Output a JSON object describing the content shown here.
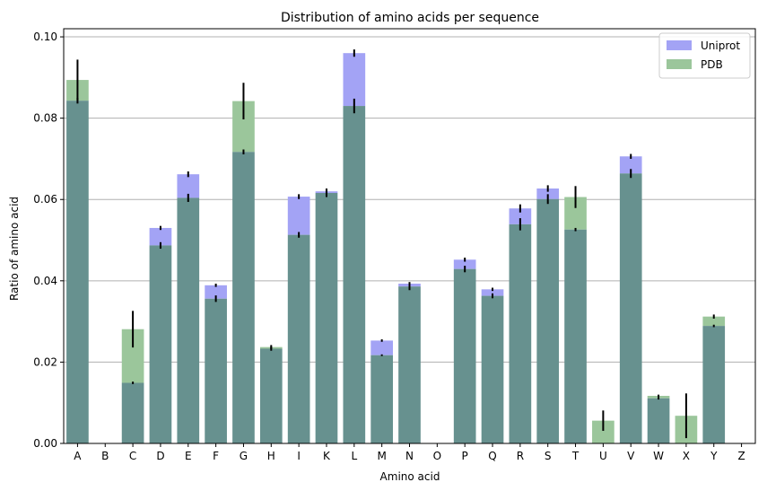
{
  "chart_data": {
    "type": "bar",
    "title": "Distribution of amino acids per sequence",
    "xlabel": "Amino acid",
    "ylabel": "Ratio of amino acid",
    "ylim": [
      0,
      0.102
    ],
    "yticks": [
      "0.00",
      "0.02",
      "0.04",
      "0.06",
      "0.08",
      "0.10"
    ],
    "grid": "horizontal",
    "legend_position": "top-right",
    "categories": [
      "A",
      "B",
      "C",
      "D",
      "E",
      "F",
      "G",
      "H",
      "I",
      "K",
      "L",
      "M",
      "N",
      "O",
      "P",
      "Q",
      "R",
      "S",
      "T",
      "U",
      "V",
      "W",
      "X",
      "Y",
      "Z"
    ],
    "series": [
      {
        "name": "Uniprot",
        "color": "#a3a3f5",
        "values": [
          0.0843,
          0,
          0.0149,
          0.053,
          0.0662,
          0.0389,
          0.0717,
          0.0233,
          0.0607,
          0.062,
          0.096,
          0.0253,
          0.0393,
          0,
          0.0452,
          0.0379,
          0.0578,
          0.0627,
          0.0526,
          0,
          0.0706,
          0.0111,
          0,
          0.0289,
          0
        ],
        "errors": [
          0.0007,
          0,
          0.0003,
          0.0005,
          0.0007,
          0.0004,
          0.0006,
          0.0005,
          0.0006,
          0.0007,
          0.0009,
          0.0003,
          0.0004,
          0,
          0.0005,
          0.0004,
          0.001,
          0.0008,
          0.0004,
          0,
          0.0006,
          0.0003,
          0,
          0.0003,
          0
        ]
      },
      {
        "name": "PDB",
        "color": "#9bc69b",
        "values": [
          0.0894,
          0,
          0.0281,
          0.0487,
          0.0604,
          0.0356,
          0.0842,
          0.0237,
          0.0513,
          0.0616,
          0.083,
          0.0217,
          0.0386,
          0,
          0.0429,
          0.0363,
          0.0539,
          0.0601,
          0.0606,
          0.0056,
          0.0664,
          0.0117,
          0.0068,
          0.0312,
          0
        ],
        "errors": [
          0.005,
          0,
          0.0045,
          0.0008,
          0.001,
          0.0008,
          0.0045,
          0.0005,
          0.0007,
          0.001,
          0.0018,
          0.0002,
          0.0009,
          0,
          0.0008,
          0.0006,
          0.0015,
          0.0012,
          0.0027,
          0.0025,
          0.0011,
          0.0003,
          0.0055,
          0.0005,
          0
        ]
      }
    ],
    "overlap_color": "#67918f"
  }
}
